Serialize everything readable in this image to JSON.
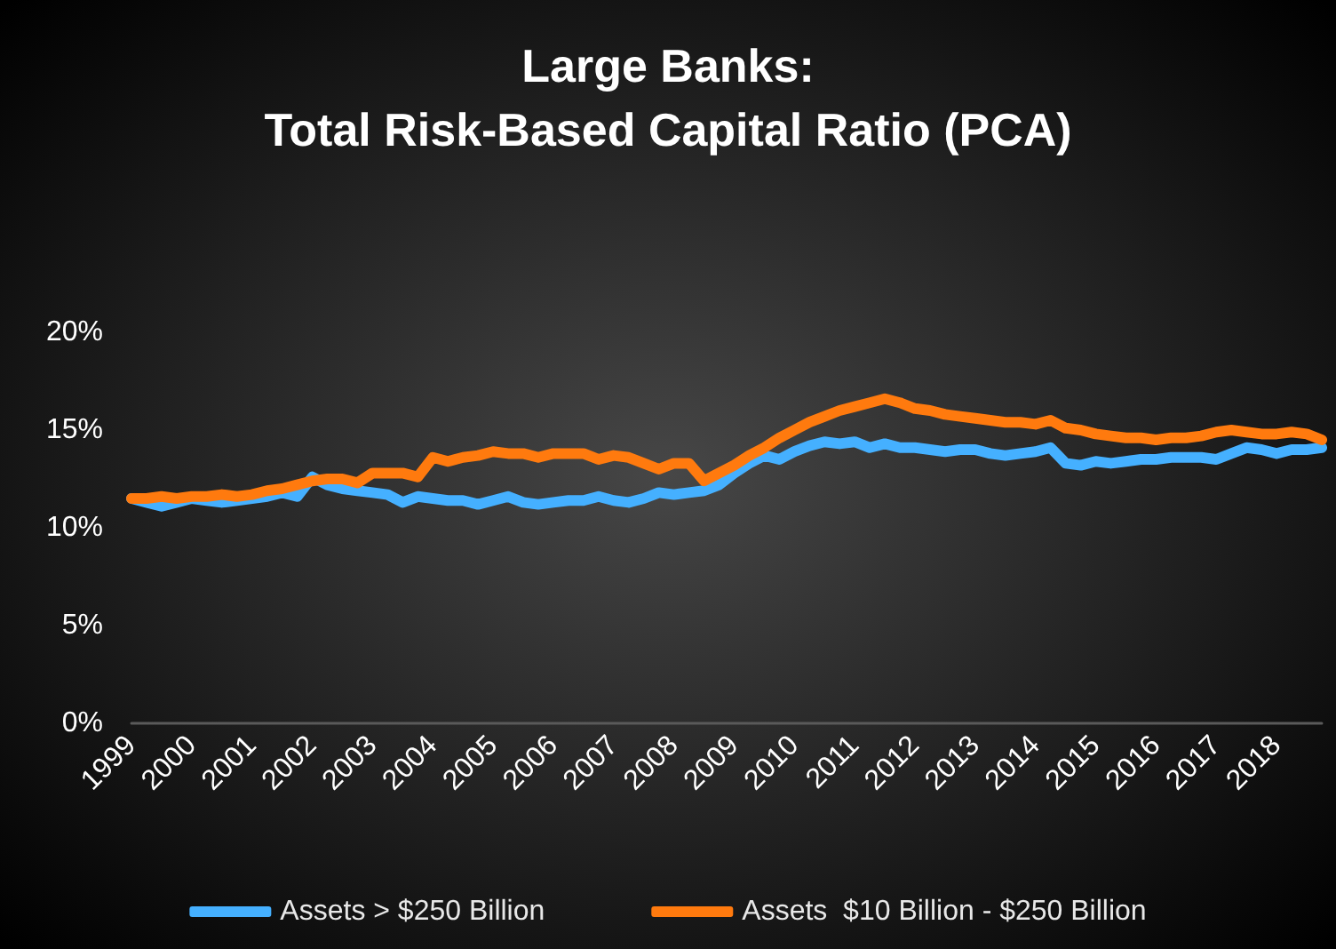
{
  "chart_data": {
    "type": "line",
    "title": "Large Banks:\nTotal Risk-Based Capital Ratio (PCA)",
    "categories": [
      "1999",
      null,
      null,
      null,
      "2000",
      null,
      null,
      null,
      "2001",
      null,
      null,
      null,
      "2002",
      null,
      null,
      null,
      "2003",
      null,
      null,
      null,
      "2004",
      null,
      null,
      null,
      "2005",
      null,
      null,
      null,
      "2006",
      null,
      null,
      null,
      "2007",
      null,
      null,
      null,
      "2008",
      null,
      null,
      null,
      "2009",
      null,
      null,
      null,
      "2010",
      null,
      null,
      null,
      "2011",
      null,
      null,
      null,
      "2012",
      null,
      null,
      null,
      "2013",
      null,
      null,
      null,
      "2014",
      null,
      null,
      null,
      "2015",
      null,
      null,
      null,
      "2016",
      null,
      null,
      null,
      "2017",
      null,
      null,
      null,
      "2018",
      null,
      null,
      null
    ],
    "series": [
      {
        "name": "Assets > $250 Billion",
        "color": "#45b0ff",
        "values": [
          11.5,
          11.3,
          11.1,
          11.3,
          11.5,
          11.4,
          11.3,
          11.4,
          11.5,
          11.6,
          11.8,
          11.6,
          12.6,
          12.2,
          12.0,
          11.9,
          11.8,
          11.7,
          11.3,
          11.6,
          11.5,
          11.4,
          11.4,
          11.2,
          11.4,
          11.6,
          11.3,
          11.2,
          11.3,
          11.4,
          11.4,
          11.6,
          11.4,
          11.3,
          11.5,
          11.8,
          11.7,
          11.8,
          11.9,
          12.2,
          12.8,
          13.3,
          13.7,
          13.5,
          13.9,
          14.2,
          14.4,
          14.3,
          14.4,
          14.1,
          14.3,
          14.1,
          14.1,
          14.0,
          13.9,
          14.0,
          14.0,
          13.8,
          13.7,
          13.8,
          13.9,
          14.1,
          13.3,
          13.2,
          13.4,
          13.3,
          13.4,
          13.5,
          13.5,
          13.6,
          13.6,
          13.6,
          13.5,
          13.8,
          14.1,
          14.0,
          13.8,
          14.0,
          14.0,
          14.1
        ]
      },
      {
        "name": "Assets  $10 Billion - $250 Billion",
        "color": "#ff7a0e",
        "values": [
          11.5,
          11.5,
          11.6,
          11.5,
          11.6,
          11.6,
          11.7,
          11.6,
          11.7,
          11.9,
          12.0,
          12.2,
          12.4,
          12.5,
          12.5,
          12.3,
          12.8,
          12.8,
          12.8,
          12.6,
          13.6,
          13.4,
          13.6,
          13.7,
          13.9,
          13.8,
          13.8,
          13.6,
          13.8,
          13.8,
          13.8,
          13.5,
          13.7,
          13.6,
          13.3,
          13.0,
          13.3,
          13.3,
          12.4,
          12.8,
          13.2,
          13.7,
          14.1,
          14.6,
          15.0,
          15.4,
          15.7,
          16.0,
          16.2,
          16.4,
          16.6,
          16.4,
          16.1,
          16.0,
          15.8,
          15.7,
          15.6,
          15.5,
          15.4,
          15.4,
          15.3,
          15.5,
          15.1,
          15.0,
          14.8,
          14.7,
          14.6,
          14.6,
          14.5,
          14.6,
          14.6,
          14.7,
          14.9,
          15.0,
          14.9,
          14.8,
          14.8,
          14.9,
          14.8,
          14.5
        ]
      }
    ],
    "ylim": [
      0,
      20
    ],
    "yticks": [
      {
        "value": 0,
        "label": "0%"
      },
      {
        "value": 5,
        "label": "5%"
      },
      {
        "value": 10,
        "label": "10%"
      },
      {
        "value": 15,
        "label": "15%"
      },
      {
        "value": 20,
        "label": "20%"
      }
    ],
    "grid": false,
    "legend": "bottom",
    "marker": "none",
    "line_style": "solid"
  }
}
